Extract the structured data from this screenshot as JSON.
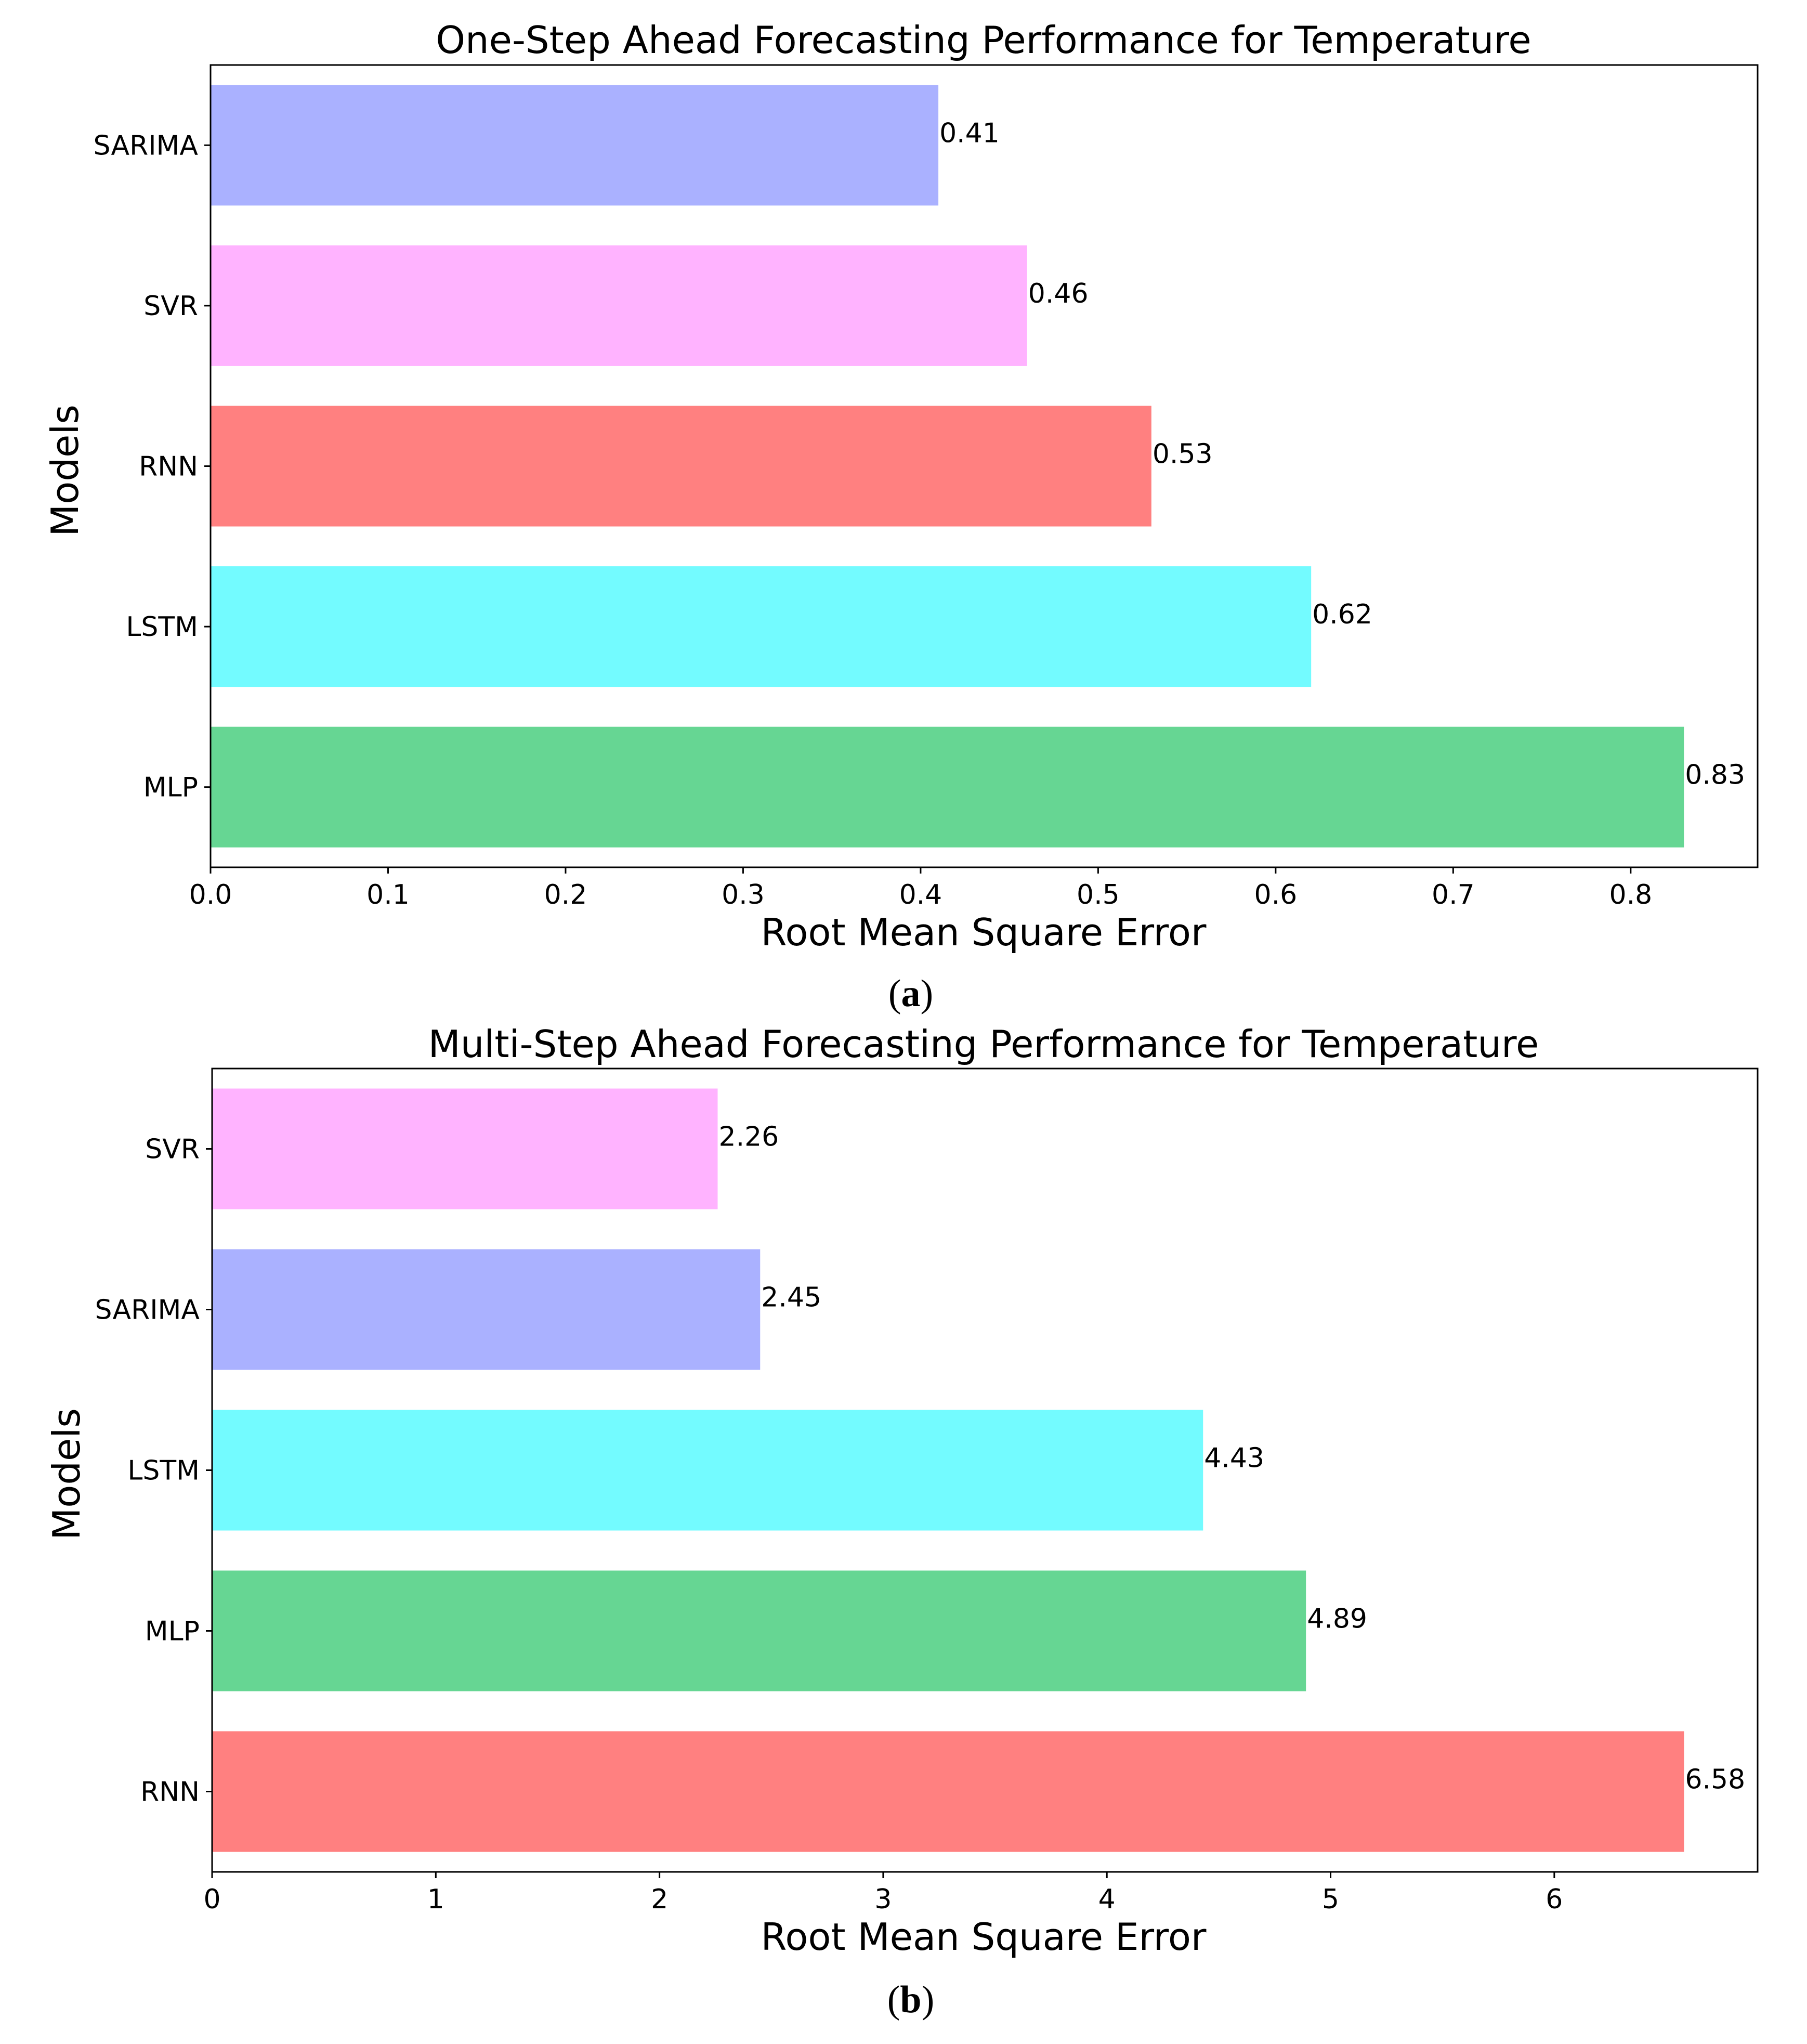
{
  "chart_data": [
    {
      "type": "bar",
      "orientation": "horizontal",
      "title": "One-Step Ahead Forecasting Performance for Temperature",
      "xlabel": "Root Mean Square Error",
      "ylabel": "Models",
      "categories": [
        "SARIMA",
        "SVR",
        "RNN",
        "LSTM",
        "MLP"
      ],
      "values": [
        0.41,
        0.46,
        0.53,
        0.62,
        0.83
      ],
      "data_labels": [
        "0.41",
        "0.46",
        "0.53",
        "0.62",
        "0.83"
      ],
      "colors": [
        "#aab1ff",
        "#ffb3ff",
        "#ff8080",
        "#73fbff",
        "#66d693"
      ],
      "xticks": [
        0.0,
        0.1,
        0.2,
        0.3,
        0.4,
        0.5,
        0.6,
        0.7,
        0.8
      ],
      "xtick_labels": [
        "0.0",
        "0.1",
        "0.2",
        "0.3",
        "0.4",
        "0.5",
        "0.6",
        "0.7",
        "0.8"
      ],
      "xlim": [
        0,
        0.8715
      ],
      "grid": false,
      "caption": {
        "open": "(",
        "letter": "a",
        "close": ")"
      }
    },
    {
      "type": "bar",
      "orientation": "horizontal",
      "title": "Multi-Step Ahead Forecasting Performance for Temperature",
      "xlabel": "Root Mean Square Error",
      "ylabel": "Models",
      "categories": [
        "SVR",
        "SARIMA",
        "LSTM",
        "MLP",
        "RNN"
      ],
      "values": [
        2.26,
        2.45,
        4.43,
        4.89,
        6.58
      ],
      "data_labels": [
        "2.26",
        "2.45",
        "4.43",
        "4.89",
        "6.58"
      ],
      "colors": [
        "#ffb3ff",
        "#aab1ff",
        "#73fbff",
        "#66d693",
        "#ff8080"
      ],
      "xticks": [
        0,
        1,
        2,
        3,
        4,
        5,
        6
      ],
      "xtick_labels": [
        "0",
        "1",
        "2",
        "3",
        "4",
        "5",
        "6"
      ],
      "xlim": [
        0,
        6.909
      ],
      "grid": false,
      "caption": {
        "open": "(",
        "letter": "b",
        "close": ")"
      }
    }
  ]
}
